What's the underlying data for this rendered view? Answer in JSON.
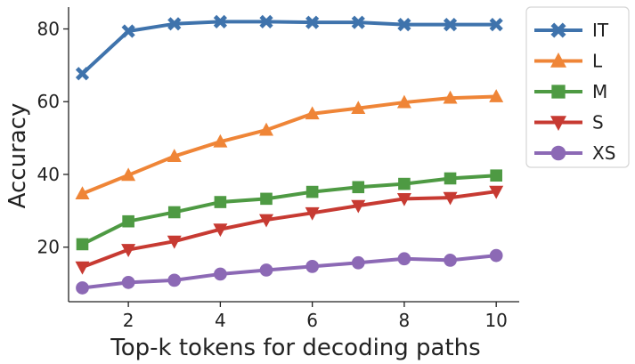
{
  "chart_data": {
    "type": "line",
    "xlabel": "Top-k tokens for decoding paths",
    "ylabel": "Accuracy",
    "x": [
      1,
      2,
      3,
      4,
      5,
      6,
      7,
      8,
      9,
      10
    ],
    "xlim": [
      0.7,
      10.5
    ],
    "ylim": [
      5,
      86
    ],
    "xticks": [
      2,
      4,
      6,
      8,
      10
    ],
    "yticks": [
      20,
      40,
      60,
      80
    ],
    "grid": false,
    "legend_position": "top-right",
    "series": [
      {
        "name": "IT",
        "marker": "x-marker",
        "color": "#3f73ac",
        "values": [
          67.7,
          79.4,
          81.4,
          82.0,
          82.0,
          81.8,
          81.8,
          81.2,
          81.2,
          81.2
        ]
      },
      {
        "name": "L",
        "marker": "triangle-up",
        "color": "#ef8537",
        "values": [
          34.7,
          39.8,
          45.0,
          49.0,
          52.2,
          56.7,
          58.2,
          59.8,
          61.0,
          61.4
        ]
      },
      {
        "name": "M",
        "marker": "square",
        "color": "#4e9a43",
        "values": [
          20.8,
          27.1,
          29.6,
          32.4,
          33.3,
          35.2,
          36.5,
          37.4,
          38.9,
          39.7
        ]
      },
      {
        "name": "S",
        "marker": "triangle-down",
        "color": "#c73a32",
        "values": [
          14.5,
          19.3,
          21.6,
          24.9,
          27.5,
          29.4,
          31.4,
          33.3,
          33.6,
          35.3
        ]
      },
      {
        "name": "XS",
        "marker": "circle",
        "color": "#8c69b5",
        "values": [
          8.8,
          10.3,
          10.9,
          12.6,
          13.7,
          14.7,
          15.7,
          16.8,
          16.4,
          17.7
        ]
      }
    ]
  }
}
